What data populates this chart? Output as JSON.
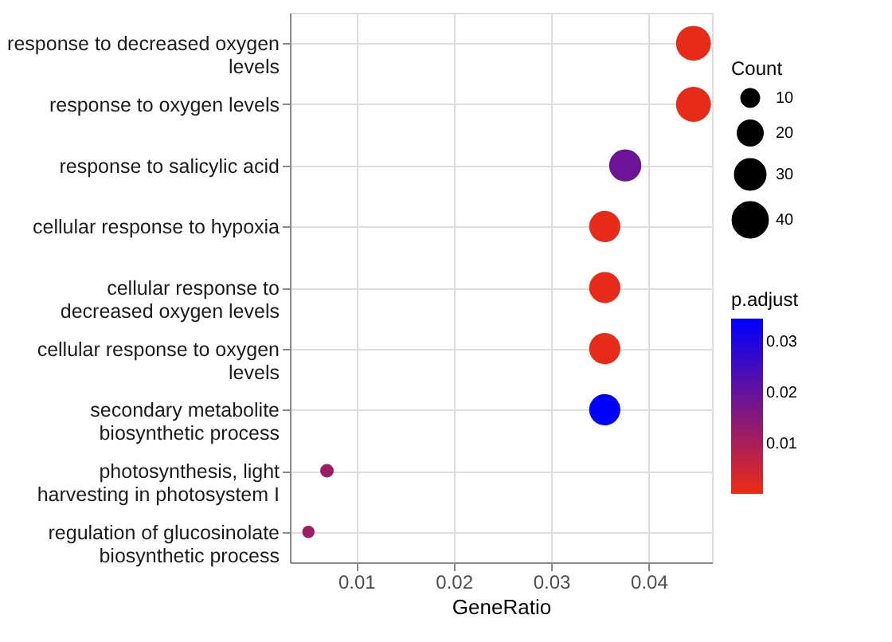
{
  "chart_data": {
    "type": "bubble",
    "xlabel": "GeneRatio",
    "categories": [
      "response to decreased oxygen\nlevels",
      "response to oxygen levels",
      "response to salicylic acid",
      "cellular response to hypoxia",
      "cellular response to\ndecreased oxygen levels",
      "cellular response to oxygen\nlevels",
      "secondary metabolite\nbiosynthetic process",
      "photosynthesis, light\nharvesting in photosystem I",
      "regulation of glucosinolate\nbiosynthetic process"
    ],
    "values": [
      0.0446,
      0.0446,
      0.0376,
      0.0355,
      0.0355,
      0.0355,
      0.0355,
      0.007,
      0.0051
    ],
    "sizes": [
      40,
      40,
      34,
      32,
      32,
      32,
      32,
      6,
      5
    ],
    "cvalues": [
      0.001,
      0.001,
      0.019,
      0.001,
      0.001,
      0.001,
      0.0345,
      0.012,
      0.012
    ],
    "orientation": "horizontal",
    "xlim": [
      0.0032,
      0.0465
    ],
    "xticks": [
      0.01,
      0.02,
      0.03,
      0.04
    ],
    "size_legend": [
      10,
      20,
      30,
      40
    ],
    "legend_title": "Count",
    "clabel": "p.adjust",
    "clim": [
      0.0002,
      0.0345
    ],
    "cticks": [
      0.01,
      0.02,
      0.03
    ],
    "grid": true
  }
}
